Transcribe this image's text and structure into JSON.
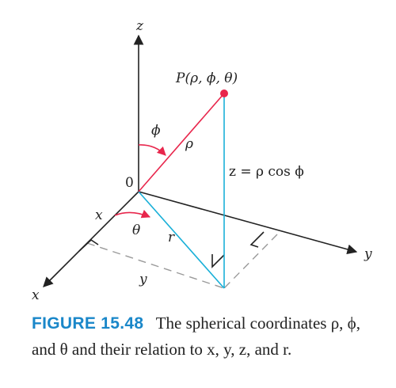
{
  "diagram": {
    "labels": {
      "z_axis": "z",
      "y_axis": "y",
      "x_axis": "x",
      "origin": "0",
      "point": "P(ρ, ϕ, θ)",
      "phi": "ϕ",
      "rho": "ρ",
      "theta": "θ",
      "r": "r",
      "x_dist": "x",
      "y_dist": "y",
      "z_relation": "z = ρ cos ϕ"
    },
    "colors": {
      "rho_line": "#e8264c",
      "projection_line": "#1ab0d8",
      "angle_arc": "#e8264c",
      "axis": "#222222",
      "dashed": "#9a9a9a"
    }
  },
  "caption": {
    "figure_label": "FIGURE 15.48",
    "text": "The spherical coordinates ρ, ϕ, and θ and their relation to x, y, z, and r."
  }
}
